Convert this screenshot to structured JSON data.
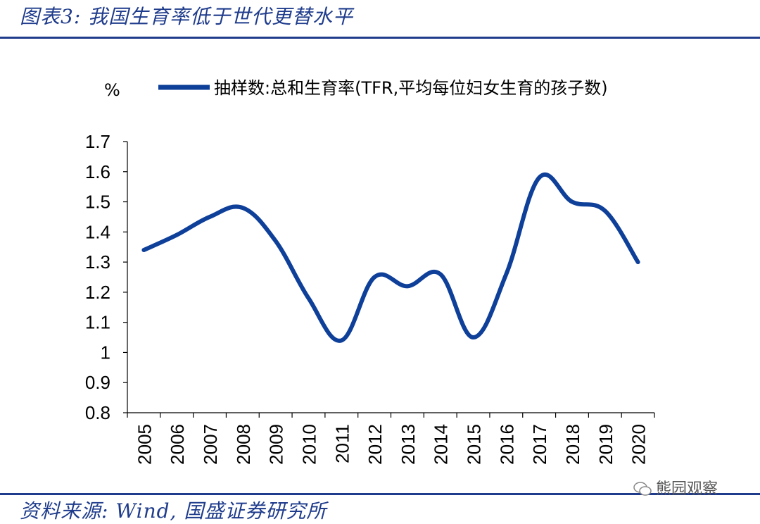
{
  "header": {
    "title": "图表3:  我国生育率低于世代更替水平"
  },
  "footer": {
    "source": "资料来源:  Wind,  国盛证券研究所"
  },
  "watermark": {
    "text": "熊园观察",
    "icon": "wechat-icon"
  },
  "colors": {
    "accent": "#1f3c8c",
    "series": "#0e3f99"
  },
  "chart_data": {
    "type": "line",
    "unit_label": "%",
    "x": [
      "2005",
      "2006",
      "2007",
      "2008",
      "2009",
      "2010",
      "2011",
      "2012",
      "2013",
      "2014",
      "2015",
      "2016",
      "2017",
      "2018",
      "2019",
      "2020"
    ],
    "series": [
      {
        "name": "抽样数:总和生育率(TFR,平均每位妇女生育的孩子数)",
        "values": [
          1.34,
          1.39,
          1.45,
          1.48,
          1.37,
          1.18,
          1.04,
          1.25,
          1.22,
          1.26,
          1.05,
          1.26,
          1.58,
          1.5,
          1.47,
          1.3
        ]
      }
    ],
    "ylim": [
      0.8,
      1.7
    ],
    "yticks": [
      "1.7",
      "1.6",
      "1.5",
      "1.4",
      "1.3",
      "1.2",
      "1.1",
      "1",
      "0.9",
      "0.8"
    ],
    "legend_position": "top",
    "grid": false
  }
}
